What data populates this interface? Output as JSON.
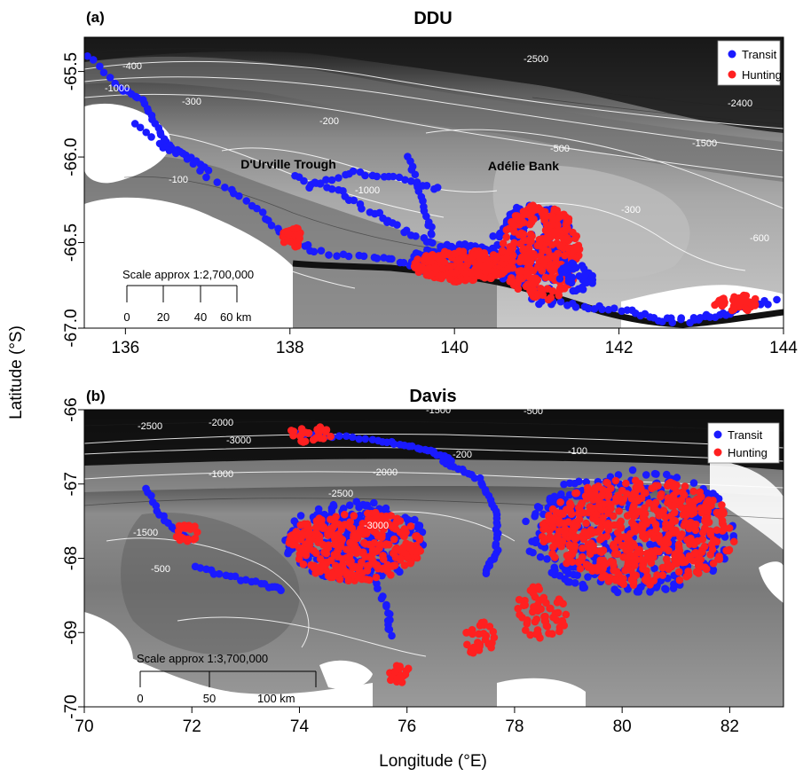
{
  "figure": {
    "ylabel": "Latitude (°S)",
    "xlabel": "Longitude (°E)"
  },
  "panels": [
    {
      "id": "a",
      "tag": "(a)",
      "title": "DDU",
      "xlim": [
        135.5,
        144
      ],
      "ylim": [
        -67.0,
        -65.3
      ],
      "xticks": [
        "136",
        "138",
        "140",
        "142",
        "144"
      ],
      "yticks": [
        "-65.5",
        "-66.0",
        "-66.5",
        "-67.0"
      ],
      "legend": {
        "position": "top-right",
        "entries": [
          "Transit",
          "Hunting"
        ]
      },
      "place_labels": [
        "D'Urville Trough",
        "Adélie Bank"
      ],
      "contour_labels": [
        "-400",
        "-1000",
        "-300",
        "-2500",
        "-200",
        "-100",
        "-500",
        "-1500",
        "-2400",
        "-600"
      ],
      "scale_bar": {
        "title": "Scale approx 1:2,700,000",
        "ticks": [
          "0",
          "20",
          "40",
          "60 km"
        ]
      }
    },
    {
      "id": "b",
      "tag": "(b)",
      "title": "Davis",
      "xlim": [
        70,
        83
      ],
      "ylim": [
        -70,
        -66
      ],
      "xticks": [
        "70",
        "72",
        "74",
        "76",
        "78",
        "80",
        "82"
      ],
      "yticks": [
        "-66",
        "-67",
        "-68",
        "-69",
        "-70"
      ],
      "legend": {
        "position": "top-right",
        "entries": [
          "Transit",
          "Hunting"
        ]
      },
      "contour_labels": [
        "-2500",
        "-2000",
        "-3000",
        "-1500",
        "-500",
        "-200",
        "-100",
        "-1000"
      ],
      "scale_bar": {
        "title": "Scale approx 1:3,700,000",
        "ticks": [
          "0",
          "50",
          "100 km"
        ]
      }
    }
  ],
  "colors": {
    "transit": "#1a1aff",
    "hunting": "#ff2020",
    "coast": "#111111"
  }
}
